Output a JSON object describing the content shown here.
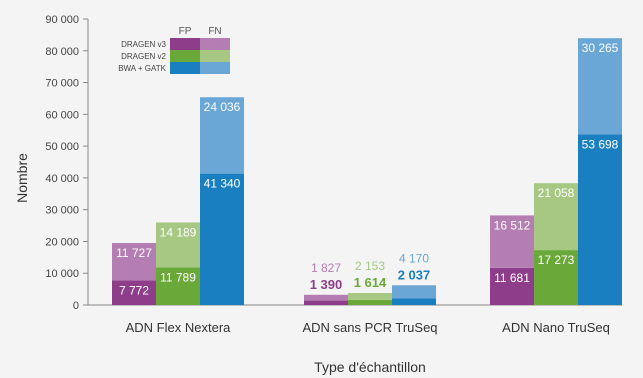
{
  "chart_data": {
    "type": "bar",
    "stacked": true,
    "xlabel": "Type d'échantillon",
    "ylabel": "Nombre",
    "ylim": [
      0,
      90000
    ],
    "yticks": [
      0,
      10000,
      20000,
      30000,
      40000,
      50000,
      60000,
      70000,
      80000,
      90000
    ],
    "ytick_labels": [
      "0",
      "10 000",
      "20 000",
      "30 000",
      "40 000",
      "50 000",
      "60 000",
      "70 000",
      "80 000",
      "90 000"
    ],
    "categories": [
      "ADN Flex Nextera",
      "ADN sans PCR TruSeq",
      "ADN Nano TruSeq"
    ],
    "stack_parts": [
      "FP",
      "FN"
    ],
    "series": [
      {
        "name": "DRAGEN v3",
        "colors": {
          "FP": "#8e3d8b",
          "FN": "#b57eb3"
        },
        "FP": [
          7772,
          1390,
          11681
        ],
        "FN": [
          11727,
          1827,
          16512
        ],
        "FP_labels": [
          "7 772",
          "1 390",
          "11 681"
        ],
        "FN_labels": [
          "11 727",
          "1 827",
          "16 512"
        ]
      },
      {
        "name": "DRAGEN v2",
        "colors": {
          "FP": "#6aa83a",
          "FN": "#a6c883"
        },
        "FP": [
          11789,
          1614,
          17273
        ],
        "FN": [
          14189,
          2153,
          21058
        ],
        "FP_labels": [
          "11 789",
          "1 614",
          "17 273"
        ],
        "FN_labels": [
          "14 189",
          "2 153",
          "21 058"
        ]
      },
      {
        "name": "BWA + GATK",
        "colors": {
          "FP": "#1a7fc1",
          "FN": "#6aa7d6"
        },
        "FP": [
          41340,
          2037,
          53698
        ],
        "FN": [
          24036,
          4170,
          30265
        ],
        "FP_labels": [
          "41 340",
          "2 037",
          "53 698"
        ],
        "FN_labels": [
          "24 036",
          "4 170",
          "30 265"
        ]
      }
    ],
    "legend": {
      "placement": "top-left",
      "headers": [
        "FP",
        "FN"
      ],
      "entries": [
        "DRAGEN v3",
        "DRAGEN v2",
        "BWA + GATK"
      ]
    },
    "grid": false
  }
}
